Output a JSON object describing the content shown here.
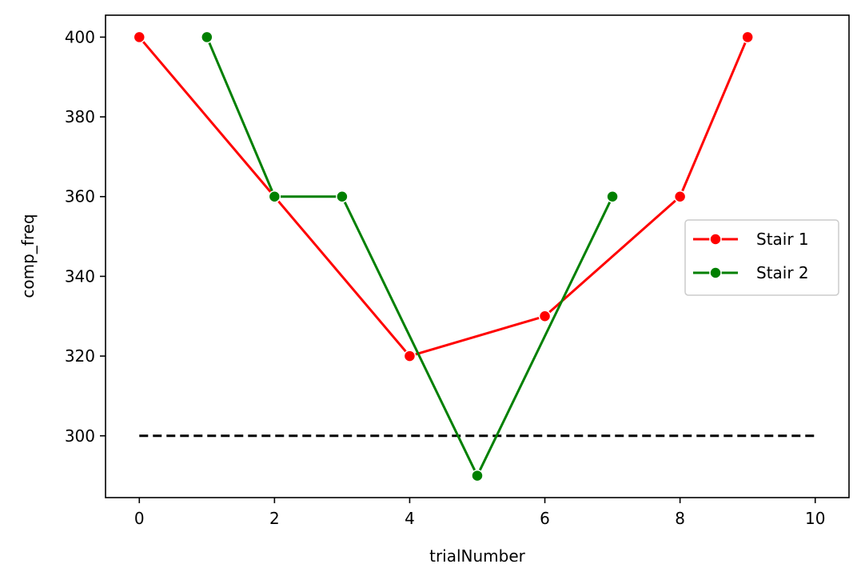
{
  "chart_data": {
    "type": "line",
    "xlabel": "trialNumber",
    "ylabel": "comp_freq",
    "xlim": [
      -0.5,
      10.5
    ],
    "ylim": [
      284.5,
      405.5
    ],
    "xticks": [
      0,
      2,
      4,
      6,
      8,
      10
    ],
    "yticks": [
      300,
      320,
      340,
      360,
      380,
      400
    ],
    "grid": false,
    "legend_position": "center-right",
    "series": [
      {
        "name": "Stair 1",
        "color": "#ff0000",
        "marker": "circle",
        "x": [
          0,
          2,
          4,
          6,
          8,
          9
        ],
        "y": [
          400,
          360,
          320,
          330,
          360,
          400
        ]
      },
      {
        "name": "Stair 2",
        "color": "#008000",
        "marker": "circle",
        "x": [
          1,
          2,
          3,
          5,
          7
        ],
        "y": [
          400,
          360,
          360,
          290,
          360
        ]
      }
    ],
    "reference_line": {
      "style": "dashed",
      "color": "#000000",
      "x": [
        0,
        10
      ],
      "y": [
        300,
        300
      ]
    }
  }
}
